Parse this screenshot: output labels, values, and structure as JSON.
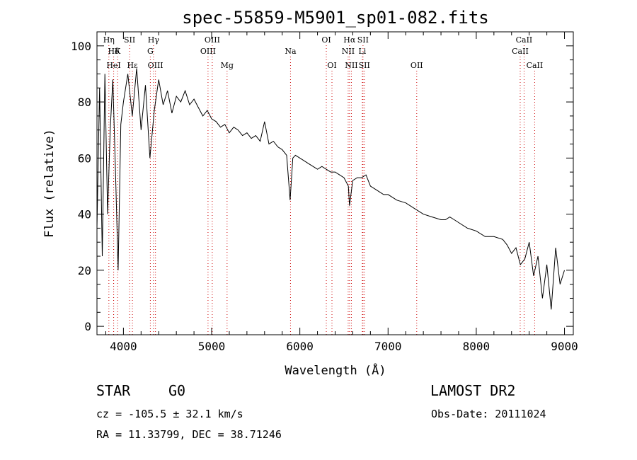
{
  "chart_data": {
    "type": "line",
    "title": "spec-55859-M5901_sp01-082.fits",
    "xlabel": "Wavelength (Å)",
    "ylabel": "Flux (relative)",
    "xlim": [
      3700,
      9100
    ],
    "ylim": [
      -3,
      105
    ],
    "xticks": [
      4000,
      5000,
      6000,
      7000,
      8000,
      9000
    ],
    "yticks": [
      0,
      20,
      40,
      60,
      80,
      100
    ],
    "series": [
      {
        "name": "flux",
        "x": [
          3700,
          3730,
          3760,
          3790,
          3820,
          3850,
          3880,
          3910,
          3940,
          3970,
          4000,
          4050,
          4100,
          4150,
          4200,
          4250,
          4300,
          4350,
          4400,
          4450,
          4500,
          4550,
          4600,
          4650,
          4700,
          4750,
          4800,
          4850,
          4900,
          4950,
          5000,
          5050,
          5100,
          5150,
          5200,
          5250,
          5300,
          5350,
          5400,
          5450,
          5500,
          5550,
          5600,
          5650,
          5700,
          5750,
          5800,
          5850,
          5890,
          5920,
          5950,
          6000,
          6050,
          6100,
          6150,
          6200,
          6250,
          6300,
          6350,
          6400,
          6450,
          6500,
          6550,
          6563,
          6600,
          6650,
          6700,
          6750,
          6800,
          6850,
          6900,
          6950,
          7000,
          7100,
          7200,
          7300,
          7400,
          7500,
          7600,
          7650,
          7700,
          7750,
          7800,
          7900,
          8000,
          8100,
          8200,
          8300,
          8350,
          8400,
          8450,
          8500,
          8550,
          8600,
          8650,
          8700,
          8750,
          8800,
          8850,
          8900,
          8950,
          9000
        ],
        "y": [
          35,
          85,
          25,
          90,
          40,
          70,
          88,
          55,
          20,
          72,
          80,
          90,
          75,
          92,
          70,
          86,
          60,
          77,
          88,
          79,
          84,
          76,
          82,
          80,
          84,
          79,
          81,
          78,
          75,
          77,
          74,
          73,
          71,
          72,
          69,
          71,
          70,
          68,
          69,
          67,
          68,
          66,
          73,
          65,
          66,
          64,
          63,
          61,
          45,
          60,
          61,
          60,
          59,
          58,
          57,
          56,
          57,
          56,
          55,
          55,
          54,
          53,
          50,
          43,
          52,
          53,
          53,
          54,
          50,
          49,
          48,
          47,
          47,
          45,
          44,
          42,
          40,
          39,
          38,
          38,
          39,
          38,
          37,
          35,
          34,
          32,
          32,
          31,
          29,
          26,
          28,
          22,
          24,
          30,
          18,
          25,
          10,
          22,
          6,
          28,
          15,
          20
        ]
      }
    ],
    "lines": [
      {
        "label": "Hη",
        "x": 3835,
        "row": 0
      },
      {
        "label": "Hδ",
        "x": 3889,
        "row": 1
      },
      {
        "label": "K",
        "x": 3934,
        "row": 1
      },
      {
        "label": "HeI",
        "x": 3889,
        "row": 2
      },
      {
        "label": "SII",
        "x": 4070,
        "row": 0
      },
      {
        "label": "Hε",
        "x": 4102,
        "row": 2
      },
      {
        "label": "Hγ",
        "x": 4341,
        "row": 0
      },
      {
        "label": "G",
        "x": 4305,
        "row": 1
      },
      {
        "label": "OIII",
        "x": 4363,
        "row": 2
      },
      {
        "label": "OIII",
        "x": 5007,
        "row": 0
      },
      {
        "label": "OIII",
        "x": 4959,
        "row": 1
      },
      {
        "label": "Mg",
        "x": 5175,
        "row": 2
      },
      {
        "label": "Na",
        "x": 5894,
        "row": 1
      },
      {
        "label": "OI",
        "x": 6300,
        "row": 0
      },
      {
        "label": "OI",
        "x": 6364,
        "row": 2
      },
      {
        "label": "Hα",
        "x": 6563,
        "row": 0
      },
      {
        "label": "SII",
        "x": 6716,
        "row": 0
      },
      {
        "label": "NII",
        "x": 6548,
        "row": 1
      },
      {
        "label": "Li",
        "x": 6708,
        "row": 1
      },
      {
        "label": "NII",
        "x": 6584,
        "row": 2
      },
      {
        "label": "SII",
        "x": 6731,
        "row": 2
      },
      {
        "label": "OII",
        "x": 7325,
        "row": 2
      },
      {
        "label": "CaII",
        "x": 8542,
        "row": 0
      },
      {
        "label": "CaII",
        "x": 8498,
        "row": 1
      },
      {
        "label": "CaII",
        "x": 8662,
        "row": 2
      }
    ]
  },
  "info": {
    "object_type": "STAR",
    "subclass": "G0",
    "survey": "LAMOST DR2",
    "cz": "cz = -105.5 ± 32.1 km/s",
    "obs_date": "Obs-Date: 20111024",
    "coords": "RA =  11.33799, DEC =  38.71246"
  },
  "colors": {
    "axis": "#000000",
    "line": "#000000",
    "marker": "#cc0000"
  }
}
